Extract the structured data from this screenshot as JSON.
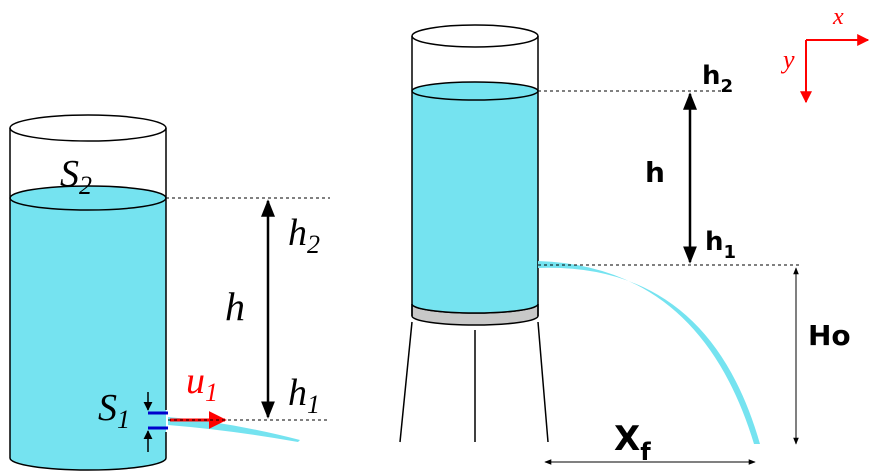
{
  "left_diagram": {
    "labels": {
      "s2": "S",
      "s2_sub": "2",
      "s1": "S",
      "s1_sub": "1",
      "h2": "h",
      "h2_sub": "2",
      "h": "h",
      "h1": "h",
      "h1_sub": "1",
      "u1": "u",
      "u1_sub": "1"
    }
  },
  "right_diagram": {
    "labels": {
      "h2": "h",
      "h2_sub": "2",
      "h": "h",
      "h1": "h",
      "h1_sub": "1",
      "ho": "Ho",
      "xf": "X",
      "xf_sub": "f"
    }
  },
  "axes": {
    "x_label": "x",
    "y_label": "y"
  },
  "colors": {
    "water": "#75E3F0",
    "jet": "#75E3F0",
    "stand_band": "#C8C8C8",
    "velocity_arrow": "#FF0000",
    "axes": "#FF0000",
    "outlet": "#0000CC"
  }
}
